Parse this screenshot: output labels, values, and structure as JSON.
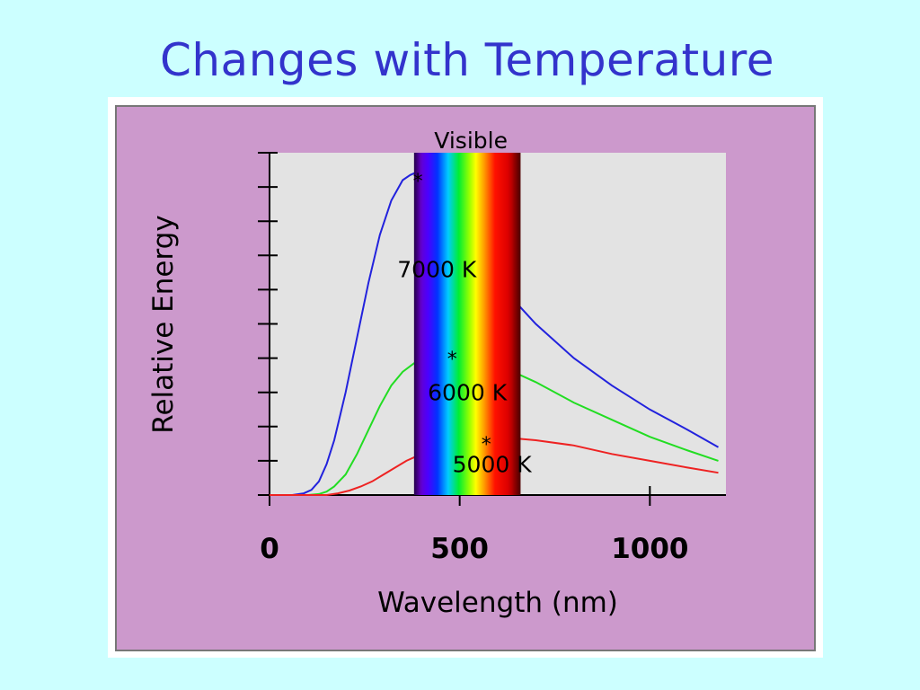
{
  "slide": {
    "title": "Changes with Temperature"
  },
  "colors": {
    "background": "#ccffff",
    "title": "#3333cc",
    "panel": "#cc99cc",
    "plot_area": "#e3e3e3"
  },
  "chart_data": {
    "type": "line",
    "xlabel": "Wavelength (nm)",
    "ylabel": "Relative Energy",
    "xlim": [
      0,
      1200
    ],
    "x_ticks": [
      0,
      500,
      1000
    ],
    "y_ticks_count": 10,
    "grid": false,
    "visible_band": {
      "label": "Visible",
      "range_nm": [
        380,
        660
      ]
    },
    "series": [
      {
        "name": "7000 K",
        "color": "#2222dd",
        "x": [
          0,
          60,
          90,
          110,
          130,
          150,
          170,
          200,
          230,
          260,
          290,
          320,
          350,
          370,
          380,
          400,
          450,
          500,
          550,
          600,
          650,
          700,
          800,
          900,
          1000,
          1100,
          1180
        ],
        "y": [
          0,
          0,
          0.005,
          0.015,
          0.04,
          0.09,
          0.16,
          0.3,
          0.46,
          0.62,
          0.76,
          0.86,
          0.92,
          0.935,
          0.94,
          0.94,
          0.9,
          0.83,
          0.74,
          0.65,
          0.56,
          0.5,
          0.4,
          0.32,
          0.25,
          0.19,
          0.14
        ],
        "peak_marker_x": 390,
        "peak_marker_y": 0.94
      },
      {
        "name": "6000 K",
        "color": "#22dd22",
        "x": [
          0,
          100,
          130,
          150,
          170,
          200,
          230,
          260,
          290,
          320,
          350,
          380,
          420,
          450,
          500,
          550,
          600,
          650,
          700,
          800,
          900,
          1000,
          1100,
          1180
        ],
        "y": [
          0,
          0,
          0.003,
          0.01,
          0.025,
          0.06,
          0.12,
          0.19,
          0.26,
          0.32,
          0.36,
          0.385,
          0.4,
          0.405,
          0.405,
          0.4,
          0.38,
          0.355,
          0.33,
          0.27,
          0.22,
          0.17,
          0.13,
          0.1
        ],
        "peak_marker_x": 480,
        "peak_marker_y": 0.42
      },
      {
        "name": "5000 K",
        "color": "#ee2222",
        "x": [
          0,
          150,
          180,
          210,
          240,
          270,
          300,
          330,
          360,
          400,
          450,
          500,
          550,
          600,
          650,
          700,
          800,
          900,
          1000,
          1100,
          1180
        ],
        "y": [
          0,
          0,
          0.005,
          0.013,
          0.025,
          0.04,
          0.06,
          0.08,
          0.1,
          0.12,
          0.14,
          0.155,
          0.165,
          0.168,
          0.165,
          0.16,
          0.145,
          0.12,
          0.1,
          0.08,
          0.065
        ],
        "peak_marker_x": 570,
        "peak_marker_y": 0.17
      }
    ],
    "labels": [
      {
        "text": "7000 K",
        "x": 440,
        "y": 0.66
      },
      {
        "text": "6000 K",
        "x": 520,
        "y": 0.3
      },
      {
        "text": "5000 K",
        "x": 585,
        "y": 0.09
      }
    ]
  }
}
